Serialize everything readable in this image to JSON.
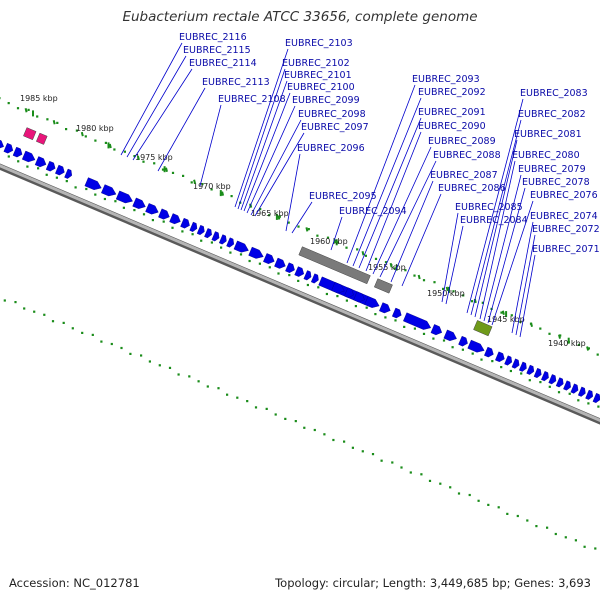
{
  "title": "Eubacterium rectale ATCC 33656, complete genome",
  "footer": {
    "accession": "Accession: NC_012781",
    "summary": "Topology: circular; Length: 3,449,685 bp; Genes: 3,693"
  },
  "colors": {
    "gene": "#0000e6",
    "gene_outline": "#000080",
    "label_text": "#0a0aa8",
    "leader": "#0000cc",
    "backbone": "#8a8a8a",
    "gc_dots": "#1a8c1a",
    "pseudo_gene": "#7a7a7a",
    "rrna": "#6f9a1a",
    "trna": "#e8157a"
  },
  "scale_labels": [
    "1985 kbp",
    "1980 kbp",
    "1975 kbp",
    "1970 kbp",
    "1965 kbp",
    "1960 kbp",
    "1955 kbp",
    "1950 kbp",
    "1945 kbp",
    "1940 kbp"
  ],
  "gene_labels": [
    "EUBREC_2116",
    "EUBREC_2115",
    "EUBREC_2114",
    "EUBREC_2113",
    "EUBREC_2108",
    "EUBREC_2103",
    "EUBREC_2102",
    "EUBREC_2101",
    "EUBREC_2100",
    "EUBREC_2099",
    "EUBREC_2098",
    "EUBREC_2097",
    "EUBREC_2096",
    "EUBREC_2095",
    "EUBREC_2094",
    "EUBREC_2093",
    "EUBREC_2092",
    "EUBREC_2091",
    "EUBREC_2090",
    "EUBREC_2089",
    "EUBREC_2088",
    "EUBREC_2087",
    "EUBREC_2086",
    "EUBREC_2085",
    "EUBREC_2084",
    "EUBREC_2083",
    "EUBREC_2082",
    "EUBREC_2081",
    "EUBREC_2080",
    "EUBREC_2079",
    "EUBREC_2078",
    "EUBREC_2076",
    "EUBREC_2074",
    "EUBREC_2072",
    "EUBREC_2071"
  ]
}
